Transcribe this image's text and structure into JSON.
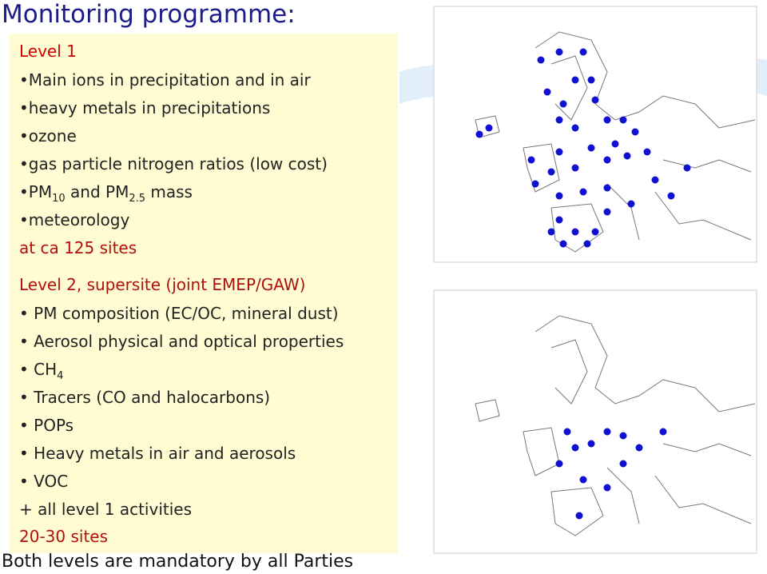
{
  "title": "Monitoring programme:",
  "level1": {
    "heading": "Level 1",
    "items": [
      "Main ions in precipitation and in air",
      "heavy metals in precipitations",
      "ozone",
      "gas particle nitrogen ratios (low cost)",
      {
        "parts": [
          "PM",
          "10",
          " and PM",
          "2.5",
          " mass"
        ]
      },
      "meteorology"
    ],
    "sites": "at ca 125 sites"
  },
  "level2": {
    "heading": "Level 2, supersite (joint EMEP/GAW)",
    "items": [
      "PM composition (EC/OC, mineral  dust)",
      "Aerosol physical and optical properties",
      {
        "parts": [
          "CH",
          "4"
        ]
      },
      "Tracers (CO and halocarbons)",
      "POPs",
      "Heavy metals in air and aerosols",
      "VOC"
    ],
    "extra": "+ all level 1 activities",
    "sites": "20-30 sites"
  },
  "footer": "Both levels are mandatory by all Parties"
}
